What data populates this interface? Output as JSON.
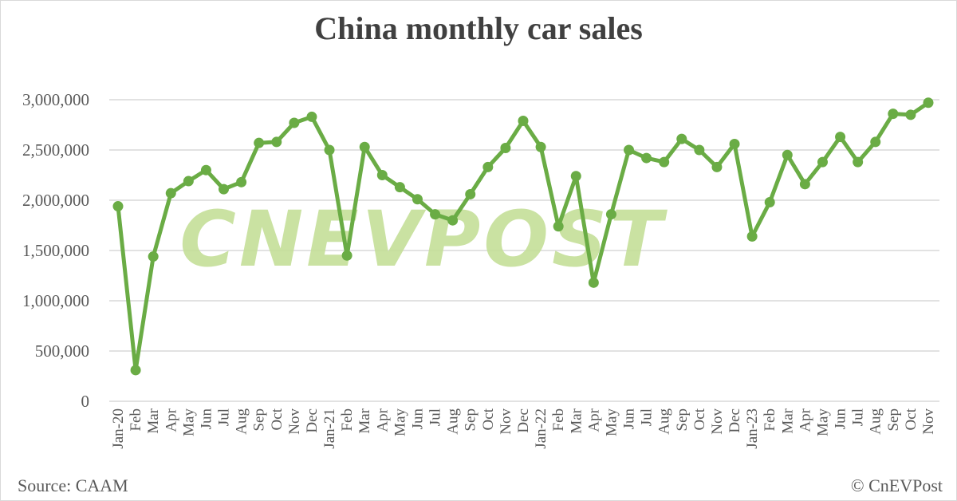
{
  "title": "China monthly car sales",
  "source": "Source: CAAM",
  "copyright": "© CnEVPost",
  "watermark": "CNEVPOST",
  "colors": {
    "line": "#6aac45",
    "marker": "#6aac45",
    "watermark": "#c5df98",
    "grid": "#d9d9d9",
    "text": "#595959",
    "title": "#404040"
  },
  "chart_data": {
    "type": "line",
    "title": "China monthly car sales",
    "xlabel": "",
    "ylabel": "",
    "ylim": [
      0,
      3000000
    ],
    "yticks": [
      0,
      500000,
      1000000,
      1500000,
      2000000,
      2500000,
      3000000
    ],
    "ytick_labels": [
      "0",
      "500,000",
      "1,000,000",
      "1,500,000",
      "2,000,000",
      "2,500,000",
      "3,000,000"
    ],
    "grid": true,
    "legend": "none",
    "categories": [
      "Jan-20",
      "Feb",
      "Mar",
      "Apr",
      "May",
      "Jun",
      "Jul",
      "Aug",
      "Sep",
      "Oct",
      "Nov",
      "Dec",
      "Jan-21",
      "Feb",
      "Mar",
      "Apr",
      "May",
      "Jun",
      "Jul",
      "Aug",
      "Sep",
      "Oct",
      "Nov",
      "Dec",
      "Jan-22",
      "Feb",
      "Mar",
      "Apr",
      "May",
      "Jun",
      "Jul",
      "Aug",
      "Sep",
      "Oct",
      "Nov",
      "Dec",
      "Jan-23",
      "Feb",
      "Mar",
      "Apr",
      "May",
      "Jun",
      "Jul",
      "Aug",
      "Sep",
      "Oct",
      "Nov"
    ],
    "series": [
      {
        "name": "Car sales",
        "values": [
          1940000,
          310000,
          1440000,
          2070000,
          2190000,
          2300000,
          2110000,
          2180000,
          2570000,
          2580000,
          2770000,
          2830000,
          2500000,
          1450000,
          2530000,
          2250000,
          2130000,
          2010000,
          1860000,
          1800000,
          2060000,
          2330000,
          2520000,
          2790000,
          2530000,
          1740000,
          2240000,
          1180000,
          1860000,
          2500000,
          2420000,
          2380000,
          2610000,
          2500000,
          2330000,
          2560000,
          1640000,
          1980000,
          2450000,
          2160000,
          2380000,
          2630000,
          2380000,
          2580000,
          2860000,
          2850000,
          2970000
        ]
      }
    ]
  }
}
